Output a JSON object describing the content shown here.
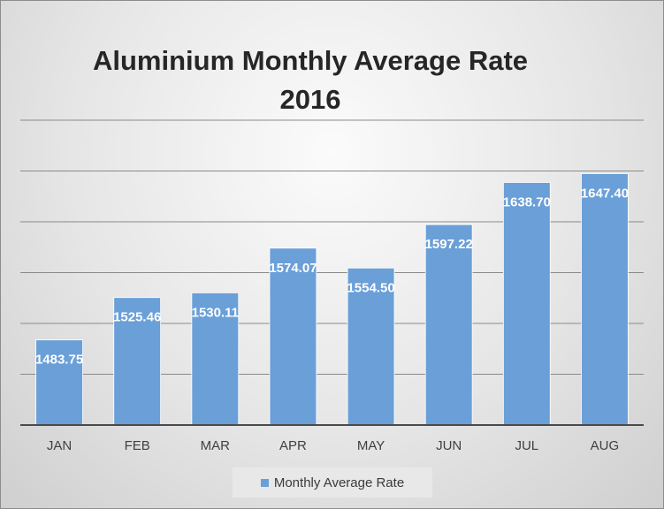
{
  "chart_data": {
    "type": "bar",
    "title_line1": "Aluminium Monthly Average Rate",
    "title_line2": "2016",
    "categories": [
      "JAN",
      "FEB",
      "MAR",
      "APR",
      "MAY",
      "JUN",
      "JUL",
      "AUG"
    ],
    "series": [
      {
        "name": "Monthly Average Rate",
        "values": [
          1483.75,
          1525.46,
          1530.11,
          1574.07,
          1554.5,
          1597.22,
          1638.7,
          1647.4
        ],
        "labels": [
          "1483.75",
          "1525.46",
          "1530.11",
          "1574.07",
          "1554.50",
          "1597.22",
          "1638.70",
          "1647.40"
        ]
      }
    ],
    "ylim": [
      1400,
      1700
    ],
    "grid": true,
    "legend_position": "bottom",
    "colors": {
      "bar": "#6a9fd8",
      "bar_edge": "#ffffff",
      "grid": "#8a8a8a",
      "label": "#ffffff"
    }
  }
}
